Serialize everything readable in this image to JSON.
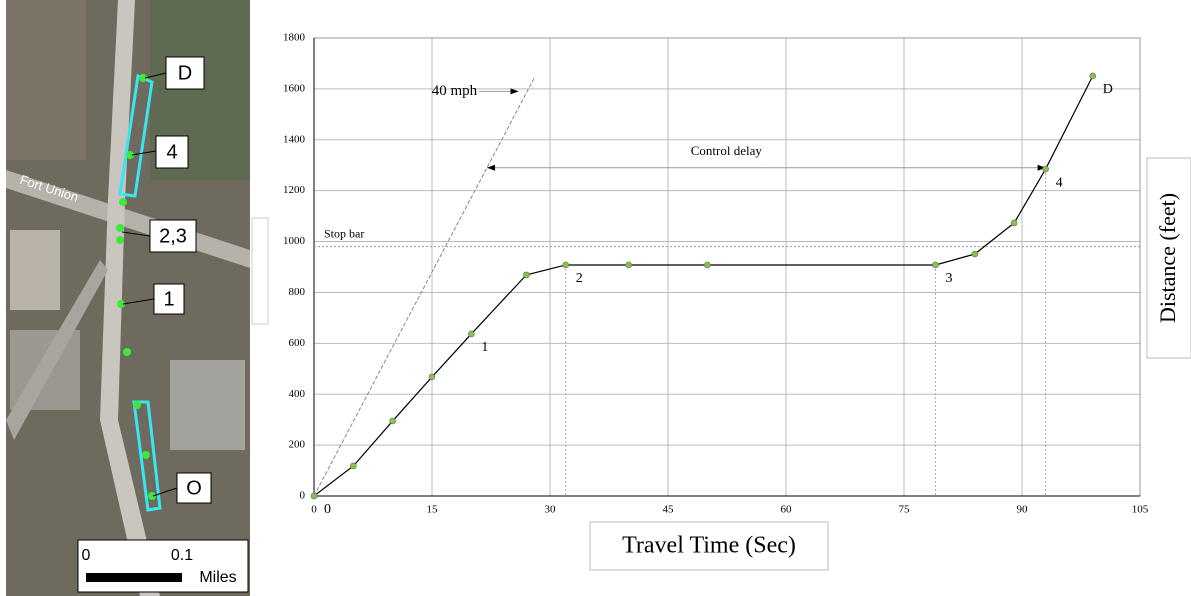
{
  "map": {
    "labels": [
      "D",
      "4",
      "2,3",
      "1",
      "O"
    ],
    "street": "Fort Union",
    "scale": {
      "start": "0",
      "end": "0.1",
      "unit": "Miles"
    }
  },
  "chart_data": {
    "type": "line",
    "x_label": "Travel Time (Sec)",
    "y_label": "Distance (feet)",
    "x": [
      0,
      5,
      10,
      15,
      20,
      27,
      32,
      40,
      50,
      79,
      84,
      89,
      93,
      99
    ],
    "series": [
      {
        "values": [
          0,
          118,
          295,
          468,
          637,
          869,
          908,
          908,
          908,
          908,
          951,
          1073,
          1285,
          1651
        ],
        "color": "#000000",
        "marker_color": "#8fbc5a",
        "point_labels": [
          "0",
          null,
          null,
          null,
          "1",
          null,
          "2",
          null,
          null,
          "3",
          null,
          null,
          "4",
          "D"
        ]
      }
    ],
    "speed_line": {
      "label": "40 mph",
      "x": [
        0,
        28
      ],
      "y": [
        0,
        1643
      ],
      "arrow_y": 1590,
      "arrow_x": [
        21,
        26
      ]
    },
    "stop_bar": {
      "label": "Stop bar",
      "y": 980
    },
    "control_delay": {
      "label": "Control delay",
      "y": 1290,
      "x": [
        22,
        93
      ]
    },
    "xlim": [
      0,
      105
    ],
    "xticks": [
      0,
      15,
      30,
      45,
      60,
      75,
      90,
      105
    ],
    "ylim": [
      0,
      1800
    ],
    "yticks": [
      0,
      200,
      400,
      600,
      800,
      1000,
      1200,
      1400,
      1600,
      1800
    ],
    "grid": true
  }
}
